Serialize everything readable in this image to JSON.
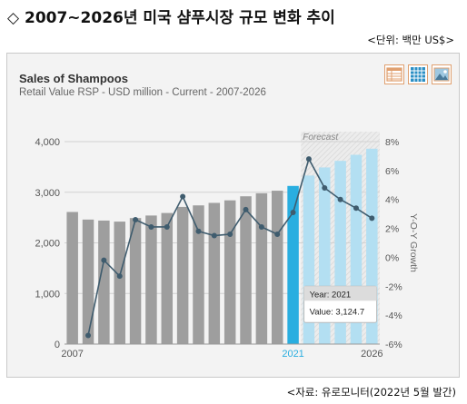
{
  "page": {
    "title": "◇ 2007~2026년 미국 샴푸시장 규모 변화 추이",
    "unit_note": "<단위: 백만 US$>",
    "source_note": "<자료: 유로모니터(2022년 5월 발간)"
  },
  "panel": {
    "view_icons": [
      "table-view-icon",
      "grid-view-icon",
      "image-view-icon"
    ]
  },
  "tooltip": {
    "year_label": "Year: 2021",
    "value_label": "Value: 3,124.7"
  },
  "colors": {
    "bar_actual": "#9e9e9e",
    "bar_current": "#29aee0",
    "bar_forecast": "#b3dff2",
    "line": "#3f5c6e",
    "icon_accent": "#e0a070"
  },
  "chart_data": {
    "type": "bar",
    "title": "Sales of Shampoos",
    "subtitle": "Retail Value RSP - USD million - Current - 2007-2026",
    "forecast_label": "Forecast",
    "x": [
      2007,
      2008,
      2009,
      2010,
      2011,
      2012,
      2013,
      2014,
      2015,
      2016,
      2017,
      2018,
      2019,
      2020,
      2021,
      2022,
      2023,
      2024,
      2025,
      2026
    ],
    "x_tick_labels": [
      "2007",
      "2021",
      "2026"
    ],
    "y_tick_labels": [
      "0",
      "1,000",
      "2,000",
      "3,000",
      "4,000"
    ],
    "y2_tick_labels": [
      "-6%",
      "-4%",
      "-2%",
      "0%",
      "2%",
      "4%",
      "6%",
      "8%"
    ],
    "ylim": [
      0,
      4000
    ],
    "y2lim": [
      -6,
      8
    ],
    "y2label": "Y-O-Y Growth",
    "grid": true,
    "highlight_year": 2021,
    "forecast_start": 2022,
    "series": [
      {
        "type": "bar",
        "values": [
          2610,
          2460,
          2440,
          2420,
          2490,
          2540,
          2590,
          2710,
          2740,
          2790,
          2840,
          2920,
          2980,
          3030,
          3124.7,
          3330,
          3490,
          3620,
          3740,
          3860
        ]
      },
      {
        "type": "line",
        "axis": "right",
        "values": [
          null,
          -5.4,
          -0.2,
          -1.3,
          2.6,
          2.1,
          2.1,
          4.2,
          1.8,
          1.5,
          1.6,
          3.3,
          2.1,
          1.6,
          3.1,
          6.8,
          4.8,
          4.0,
          3.4,
          2.7
        ]
      }
    ]
  }
}
